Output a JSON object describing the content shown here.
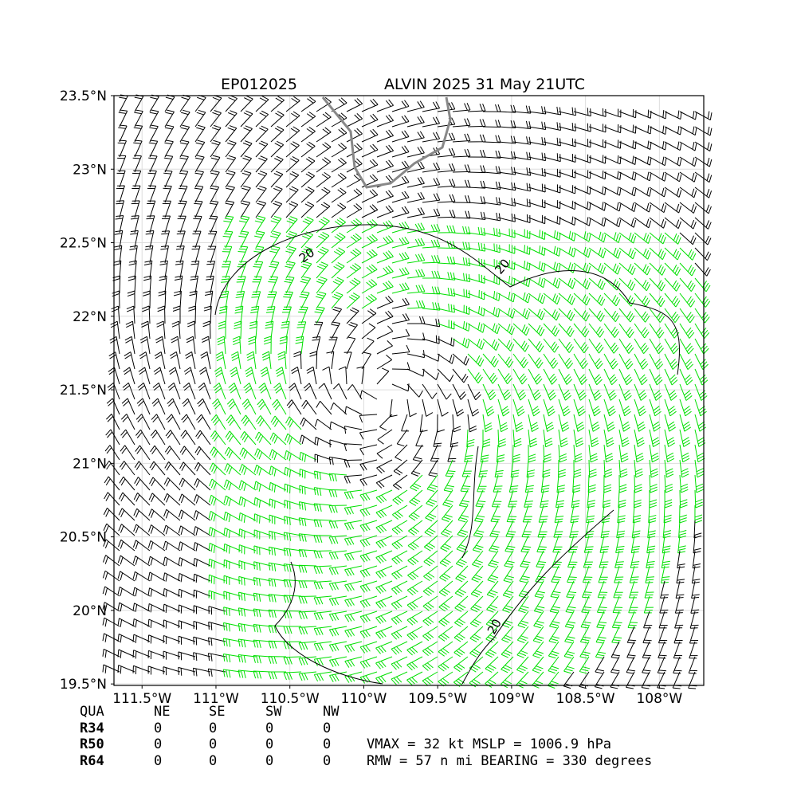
{
  "map": {
    "title_left": "EP012025",
    "title_right": "ALVIN 2025 31 May 21UTC",
    "xlim": [
      -111.69,
      -107.7
    ],
    "ylim": [
      19.49,
      23.5
    ],
    "xticks": [
      {
        "value": -111.5,
        "label": "111.5°W"
      },
      {
        "value": -111,
        "label": "111°W"
      },
      {
        "value": -110.5,
        "label": "110.5°W"
      },
      {
        "value": -110,
        "label": "110°W"
      },
      {
        "value": -109.5,
        "label": "109.5°W"
      },
      {
        "value": -109,
        "label": "109°W"
      },
      {
        "value": -108.5,
        "label": "108.5°W"
      },
      {
        "value": -108,
        "label": "108°W"
      }
    ],
    "yticks": [
      {
        "value": 19.5,
        "label": "19.5°N"
      },
      {
        "value": 20,
        "label": "20°N"
      },
      {
        "value": 20.5,
        "label": "20.5°N"
      },
      {
        "value": 21,
        "label": "21°N"
      },
      {
        "value": 21.5,
        "label": "21.5°N"
      },
      {
        "value": 22,
        "label": "22°N"
      },
      {
        "value": 22.5,
        "label": "22.5°N"
      },
      {
        "value": 23,
        "label": "23°N"
      },
      {
        "value": 23.5,
        "label": "23.5°N"
      }
    ],
    "grid": true,
    "contour_labels": [
      "20",
      "20",
      "20"
    ]
  },
  "table": {
    "header": [
      "QUA",
      "NE",
      "SE",
      "SW",
      "NW"
    ],
    "rows": [
      [
        "R34",
        "0",
        "0",
        "0",
        "0"
      ],
      [
        "R50",
        "0",
        "0",
        "0",
        "0"
      ],
      [
        "R64",
        "0",
        "0",
        "0",
        "0"
      ]
    ]
  },
  "info": [
    "VMAX =  32 kt MSLP = 1006.9 hPa",
    "RMW =  57 n mi BEARING = 330 degrees"
  ]
}
